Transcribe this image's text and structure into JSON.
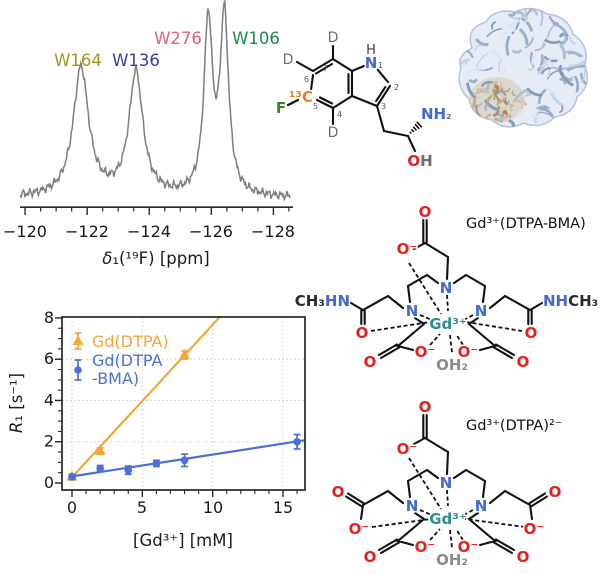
{
  "nmr": {
    "xlabel_italic": "δ",
    "xlabel_rest": "₁(¹⁹F) [ppm]",
    "xtick_labels": [
      "−120",
      "−122",
      "−124",
      "−126",
      "−128"
    ],
    "line_color": "#7f7f7f"
  },
  "trp": {
    "atoms": {
      "d": "D",
      "f": "F",
      "c13": "¹³C",
      "n": "N",
      "h": "H",
      "nh": "NH",
      "sub2": "₂",
      "o": "O",
      "oh_h": "H"
    },
    "numbers": [
      "1",
      "2",
      "3",
      "4",
      "5",
      "6",
      "7"
    ]
  },
  "relax_plot": {
    "ylabel_italic": "R",
    "ylabel_rest": "₁ [s⁻¹]",
    "xlabel": "[Gd³⁺] [mM]",
    "xtick_labels": [
      "0",
      "5",
      "10",
      "15"
    ],
    "ytick_labels": [
      "0",
      "2",
      "4",
      "6",
      "8"
    ],
    "legend": {
      "line1": "Gd(DTPA)",
      "line2a": "Gd(DTPA",
      "line2b": "-BMA)"
    }
  },
  "chelates": {
    "bma_label": "Gd³⁺(DTPA-BMA)",
    "dtpa_label": "Gd³⁺(DTPA)²⁻",
    "atoms": {
      "n": "N",
      "o": "O",
      "o_minus": "O⁻",
      "gd": "Gd³⁺",
      "water": "OH₂",
      "methyl_left": "CH₃",
      "hn": "HN",
      "nh": "NH",
      "methyl_right": "CH₃"
    },
    "colors": {
      "n": "#4169d0",
      "o": "#e3201b",
      "gd": "#2a8f86",
      "water": "#8c8c8c"
    }
  },
  "chart_data": [
    {
      "type": "line",
      "name": "19F NMR spectrum",
      "xlabel": "δ₁(¹⁹F) [ppm]",
      "x_ticks": [
        -120,
        -122,
        -124,
        -126,
        -128
      ],
      "x_range": [
        -119.85,
        -128.55
      ],
      "x_axis_reversed": true,
      "line_color": "#7f7f7f",
      "peaks": [
        {
          "label": "W164",
          "ppm": -121.8,
          "height": 0.73,
          "hwhm": 0.3,
          "color": "#9a9a1e"
        },
        {
          "label": "W136",
          "ppm": -123.57,
          "height": 0.7,
          "hwhm": 0.27,
          "color": "#3a3ab0"
        },
        {
          "label": "W276",
          "ppm": -125.9,
          "height": 0.97,
          "hwhm": 0.165,
          "color": "#e05f7a"
        },
        {
          "label": "W106",
          "ppm": -126.42,
          "height": 1.0,
          "hwhm": 0.165,
          "color": "#1e8a4a"
        }
      ]
    },
    {
      "type": "scatter",
      "xlabel": "[Gd³⁺] [mM]",
      "ylabel": "R₁ [s⁻¹]",
      "xlim": [
        -0.7,
        16.55
      ],
      "ylim": [
        -0.34,
        8.05
      ],
      "xticks": [
        0,
        5,
        10,
        15
      ],
      "yticks": [
        0,
        2,
        4,
        6,
        8
      ],
      "grid": true,
      "series": [
        {
          "name": "Gd(DTPA)",
          "marker": "triangle",
          "color": "#f2a73b",
          "x": [
            0,
            2,
            8
          ],
          "y": [
            0.3,
            1.55,
            6.2
          ],
          "yerr": [
            0.15,
            0.15,
            0.2
          ],
          "fit_slope": 0.739,
          "fit_intercept": 0.28
        },
        {
          "name": "Gd(DTPA-BMA)",
          "marker": "circle",
          "color": "#4a6fd8",
          "x": [
            0,
            2,
            4,
            6,
            8,
            16
          ],
          "y": [
            0.3,
            0.7,
            0.62,
            0.95,
            1.1,
            2.0
          ],
          "yerr": [
            0.1,
            0.15,
            0.2,
            0.15,
            0.3,
            0.35
          ],
          "fit_slope": 0.106,
          "fit_intercept": 0.32
        }
      ]
    }
  ]
}
